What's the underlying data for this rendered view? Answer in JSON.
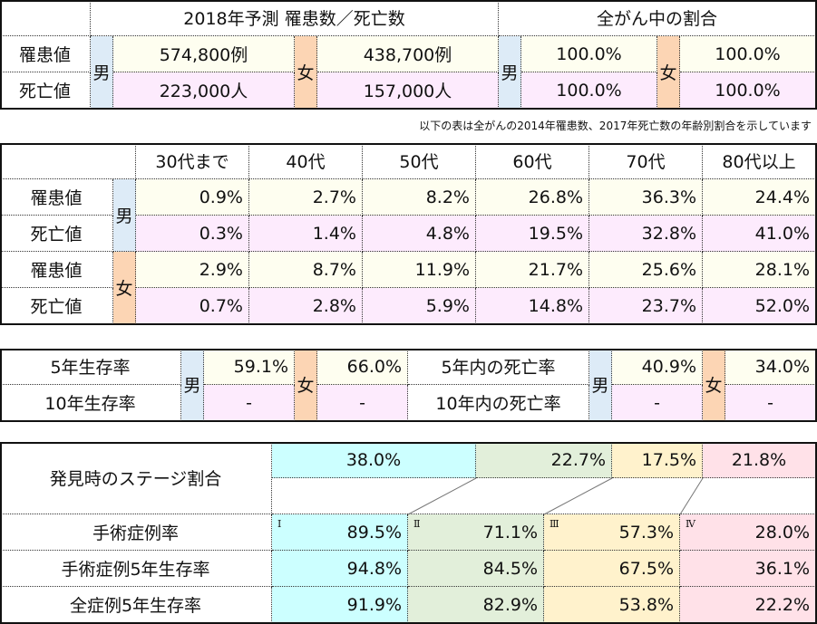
{
  "colors": {
    "inc": "#fefef0",
    "death": "#fdebfd",
    "male": "#ddebf7",
    "female": "#fcd5b4",
    "s1": "#ccffff",
    "s2": "#e2efda",
    "s3": "#fff2cc",
    "s4": "#ffe1e8"
  },
  "summary": {
    "title": "2018年予測 罹患数／死亡数",
    "ratio_title": "全がん中の割合",
    "row_inc": "罹患値",
    "row_death": "死亡値",
    "male": "男",
    "female": "女",
    "male_inc": "574,800例",
    "female_inc": "438,700例",
    "male_death": "223,000人",
    "female_death": "157,000人",
    "ratio_male_inc": "100.0%",
    "ratio_female_inc": "100.0%",
    "ratio_male_death": "100.0%",
    "ratio_female_death": "100.0%"
  },
  "note": "以下の表は全がんの2014年罹患数、2017年死亡数の年齢別割合を示しています",
  "age": {
    "headers": [
      "30代まで",
      "40代",
      "50代",
      "60代",
      "70代",
      "80代以上"
    ],
    "male": "男",
    "female": "女",
    "row_inc": "罹患値",
    "row_death": "死亡値",
    "rows": [
      [
        "0.9%",
        "2.7%",
        "8.2%",
        "26.8%",
        "36.3%",
        "24.4%"
      ],
      [
        "0.3%",
        "1.4%",
        "4.8%",
        "19.5%",
        "32.8%",
        "41.0%"
      ],
      [
        "2.9%",
        "8.7%",
        "11.9%",
        "21.7%",
        "25.6%",
        "28.1%"
      ],
      [
        "0.7%",
        "2.8%",
        "5.9%",
        "14.8%",
        "23.7%",
        "52.0%"
      ]
    ]
  },
  "survival": {
    "r5": "5年生存率",
    "r10": "10年生存率",
    "d5": "5年内の死亡率",
    "d10": "10年内の死亡率",
    "male": "男",
    "female": "女",
    "m5": "59.1%",
    "f5": "66.0%",
    "m10": "-",
    "f10": "-",
    "dm5": "40.9%",
    "df5": "34.0%",
    "dm10": "-",
    "df10": "-"
  },
  "stage": {
    "label": "発見時のステージ割合",
    "dist": [
      "38.0%",
      "22.7%",
      "17.5%",
      "21.8%"
    ],
    "roman": [
      "Ⅰ",
      "Ⅱ",
      "Ⅲ",
      "Ⅳ"
    ],
    "rows": [
      {
        "label": "手術症例率",
        "values": [
          "89.5%",
          "71.1%",
          "57.3%",
          "28.0%"
        ]
      },
      {
        "label": "手術症例5年生存率",
        "values": [
          "94.8%",
          "84.5%",
          "67.5%",
          "36.1%"
        ]
      },
      {
        "label": "全症例5年生存率",
        "values": [
          "91.9%",
          "82.9%",
          "53.8%",
          "22.2%"
        ]
      }
    ]
  }
}
